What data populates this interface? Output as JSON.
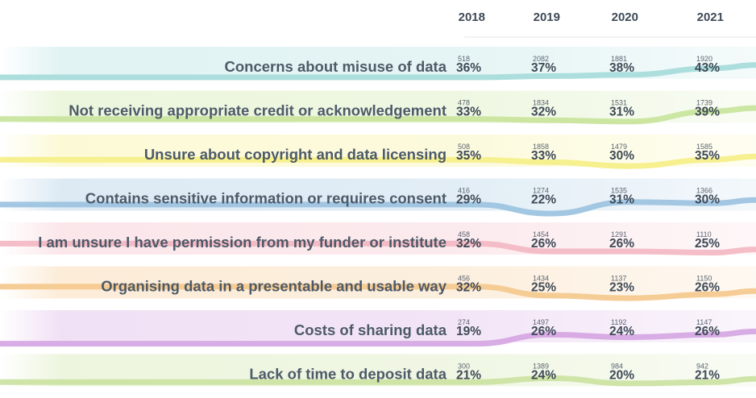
{
  "chart_data": {
    "type": "line",
    "years": [
      "2018",
      "2019",
      "2020",
      "2021"
    ],
    "series": [
      {
        "name": "Concerns about misuse of data",
        "counts": [
          "518",
          "2082",
          "1881",
          "1920"
        ],
        "percents": [
          36,
          37,
          38,
          43
        ],
        "color": "#a9dcdc"
      },
      {
        "name": "Not receiving appropriate credit or acknowledgement",
        "counts": [
          "478",
          "1834",
          "1531",
          "1739"
        ],
        "percents": [
          33,
          32,
          31,
          39
        ],
        "color": "#c9e59e"
      },
      {
        "name": "Unsure about copyright and data licensing",
        "counts": [
          "508",
          "1858",
          "1479",
          "1585"
        ],
        "percents": [
          35,
          33,
          30,
          35
        ],
        "color": "#f6ef8a"
      },
      {
        "name": "Contains sensitive information or requires consent",
        "counts": [
          "416",
          "1274",
          "1535",
          "1366"
        ],
        "percents": [
          29,
          22,
          31,
          30
        ],
        "color": "#9ec4e0"
      },
      {
        "name": "I am unsure I have permission from my funder or institute",
        "counts": [
          "458",
          "1454",
          "1291",
          "1110"
        ],
        "percents": [
          32,
          26,
          26,
          25
        ],
        "color": "#f3b9c4"
      },
      {
        "name": "Organising data in a presentable and usable way",
        "counts": [
          "456",
          "1434",
          "1137",
          "1150"
        ],
        "percents": [
          32,
          25,
          23,
          26
        ],
        "color": "#f6c990"
      },
      {
        "name": "Costs of sharing data",
        "counts": [
          "274",
          "1497",
          "1192",
          "1147"
        ],
        "percents": [
          19,
          26,
          24,
          26
        ],
        "color": "#d6a8e3"
      },
      {
        "name": "Lack of time to deposit data",
        "counts": [
          "300",
          "1389",
          "984",
          "942"
        ],
        "percents": [
          21,
          24,
          20,
          21
        ],
        "color": "#cce3a3"
      }
    ]
  }
}
